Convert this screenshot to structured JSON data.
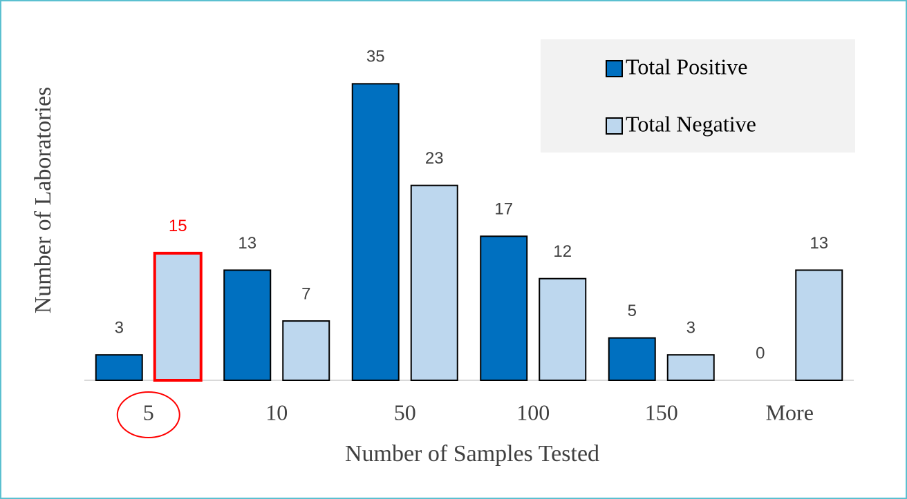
{
  "chart_data": {
    "type": "bar",
    "x_label": "Number of Samples Tested",
    "y_label": "Number of Laboratories",
    "categories": [
      "5",
      "10",
      "50",
      "100",
      "150",
      "More"
    ],
    "series": [
      {
        "name": "Total Positive",
        "color": "#0070c0",
        "values": [
          3,
          13,
          35,
          17,
          5,
          0
        ]
      },
      {
        "name": "Total Negative",
        "color": "#bdd7ee",
        "values": [
          15,
          7,
          23,
          12,
          3,
          13
        ]
      }
    ],
    "ylim": [
      0,
      40
    ],
    "legend": "top-right",
    "highlight": {
      "category": "5",
      "series": "Total Negative",
      "color": "#ff0000"
    }
  }
}
